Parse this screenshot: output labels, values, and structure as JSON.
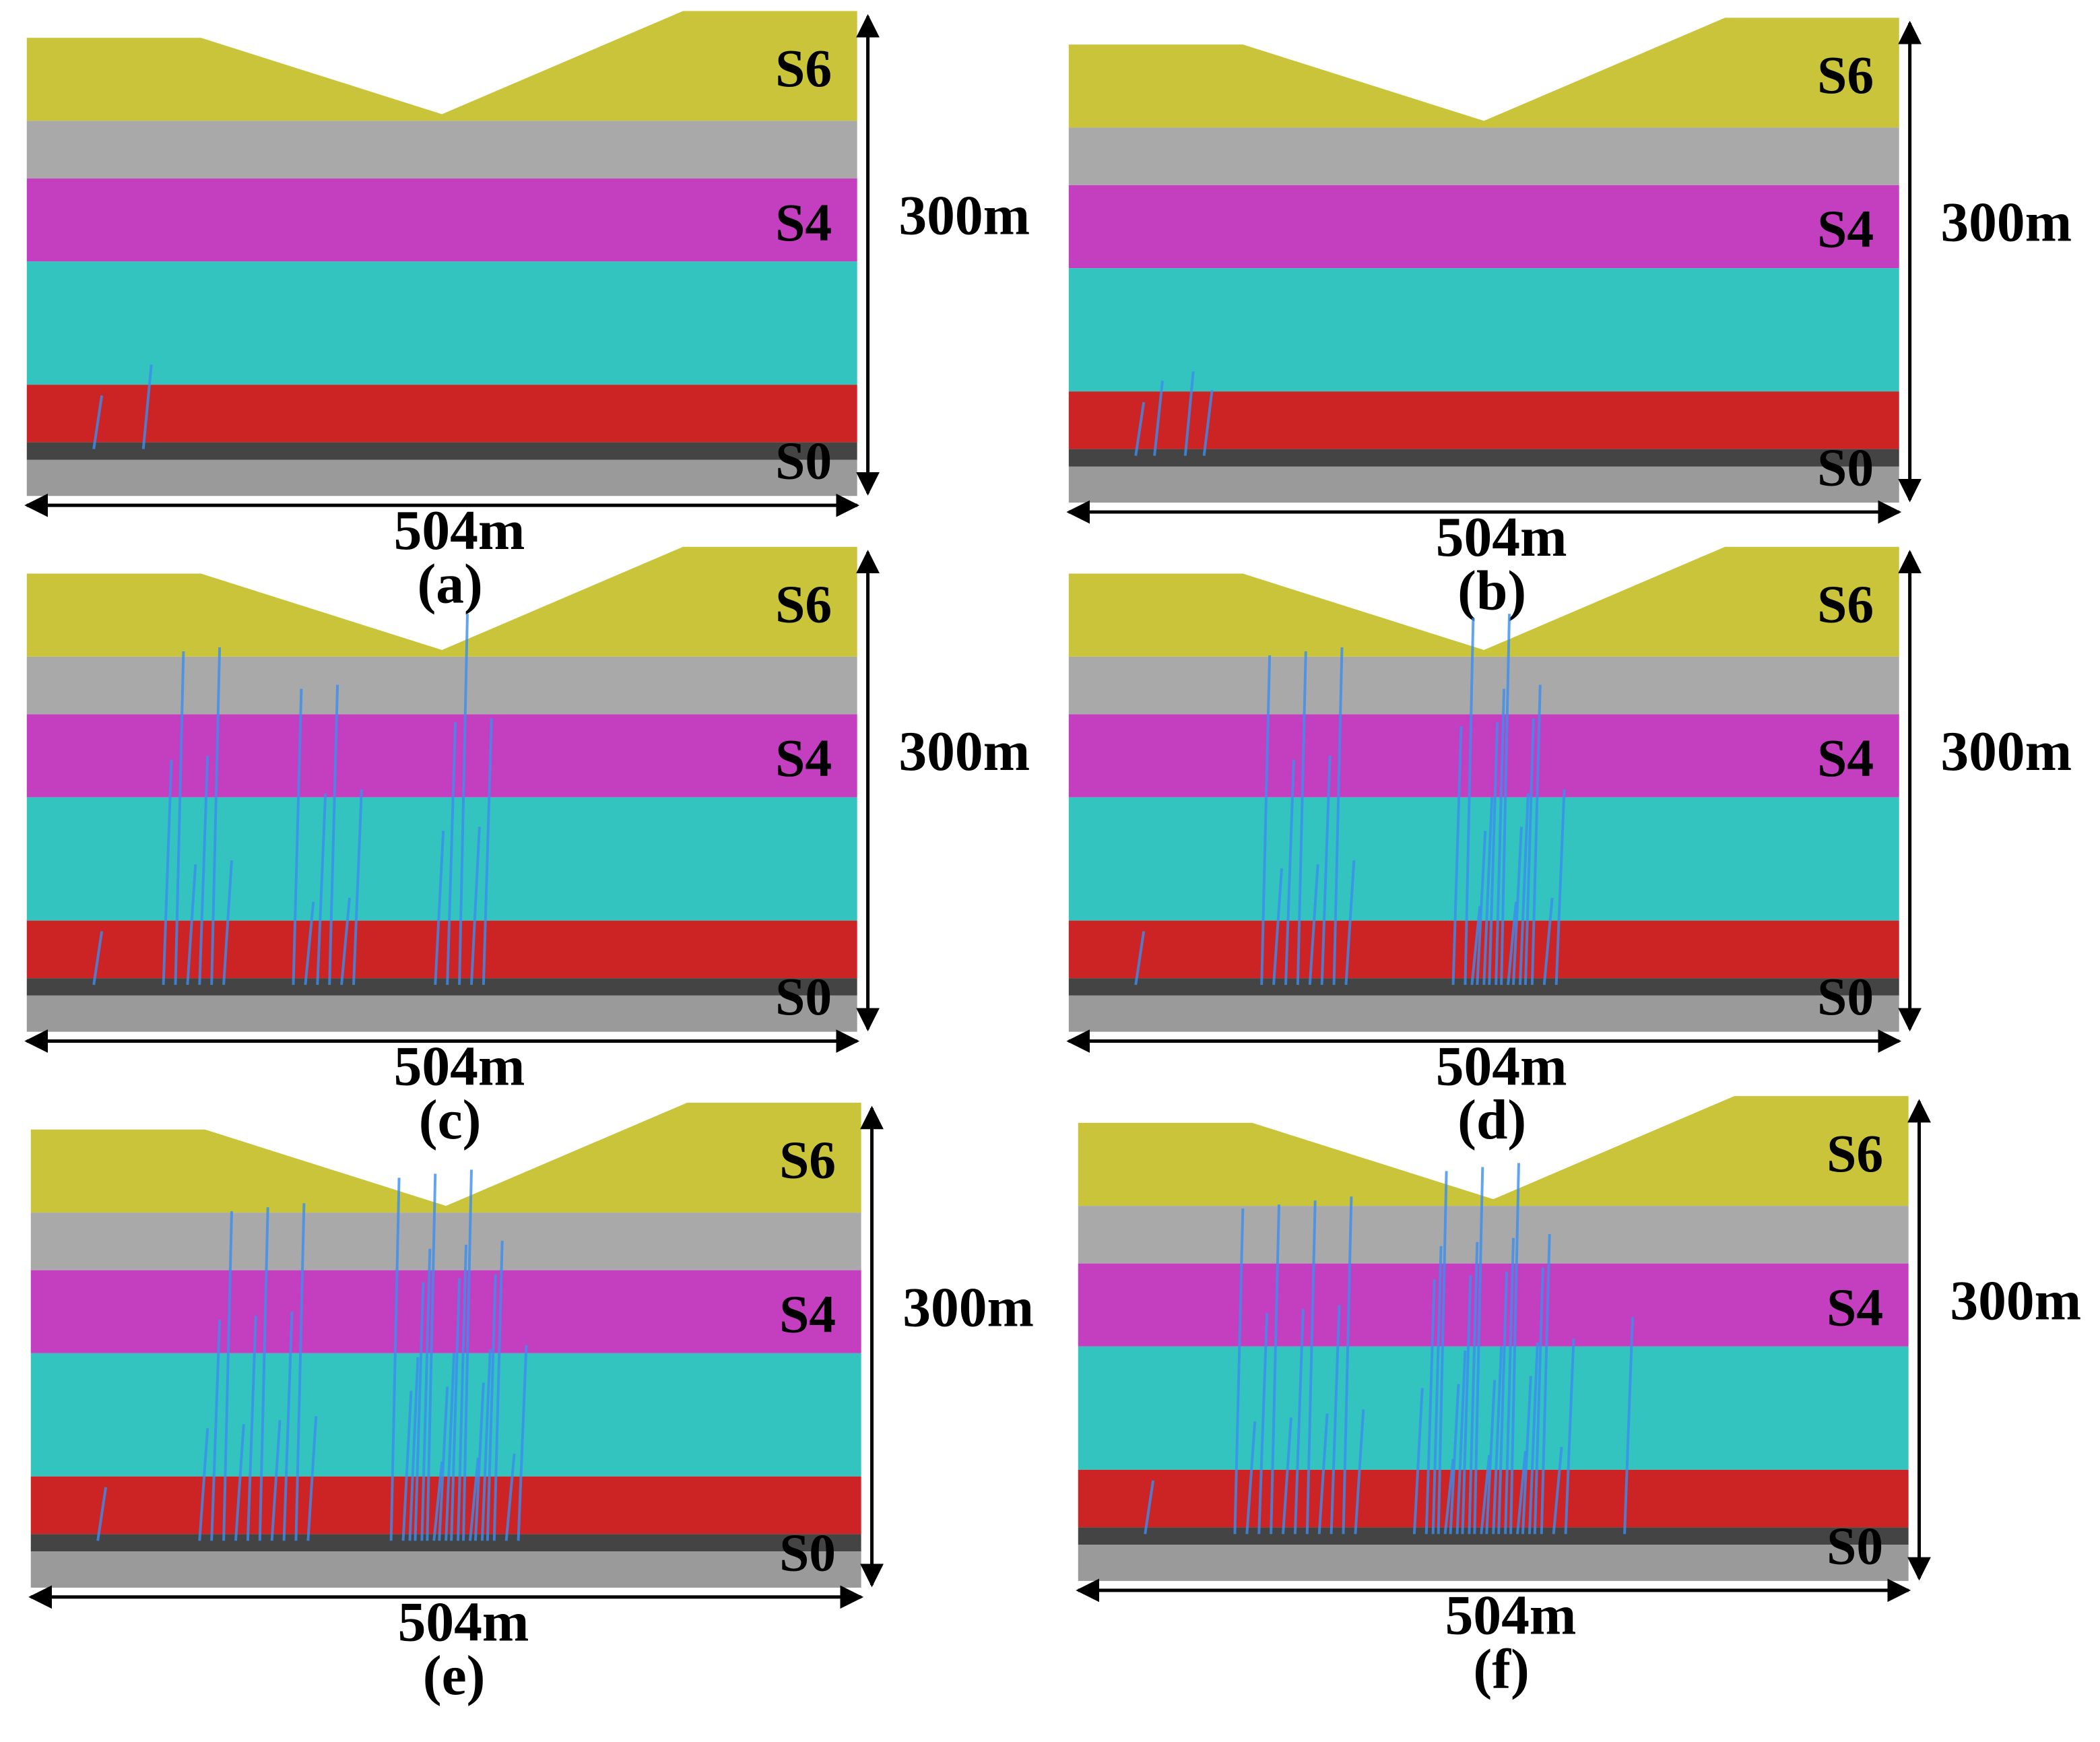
{
  "panels": [
    {
      "layers": [
        "S6",
        "S4",
        "S0"
      ],
      "height": "300m",
      "width": "504m",
      "caption": "(a)"
    },
    {
      "layers": [
        "S6",
        "S4",
        "S0"
      ],
      "height": "300m",
      "width": "504m",
      "caption": "(b)"
    },
    {
      "layers": [
        "S6",
        "S4",
        "S0"
      ],
      "height": "300m",
      "width": "504m",
      "caption": "(c)"
    },
    {
      "layers": [
        "S6",
        "S4",
        "S0"
      ],
      "height": "300m",
      "width": "504m",
      "caption": "(d)"
    },
    {
      "layers": [
        "S6",
        "S4",
        "S0"
      ],
      "height": "300m",
      "width": "504m",
      "caption": "(e)"
    },
    {
      "layers": [
        "S6",
        "S4",
        "S0"
      ],
      "height": "300m",
      "width": "504m",
      "caption": "(f)"
    }
  ]
}
